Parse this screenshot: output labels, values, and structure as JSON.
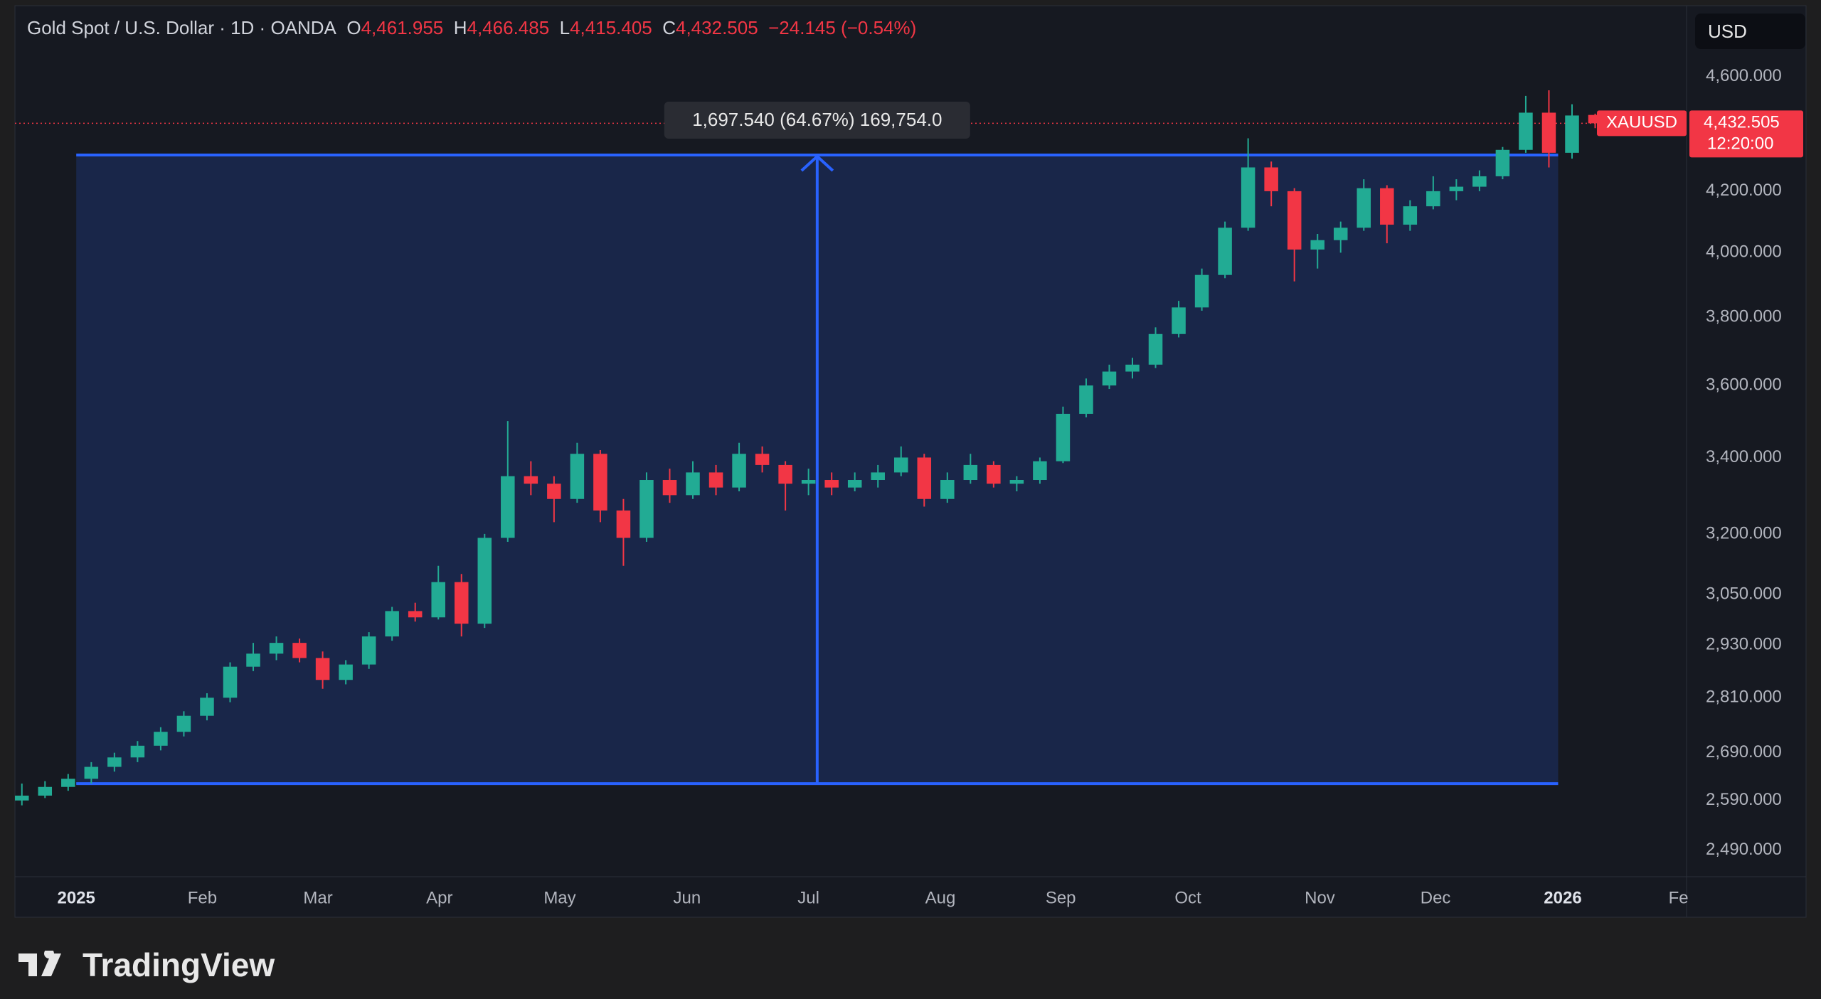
{
  "header": {
    "symbol": "Gold Spot / U.S. Dollar · 1D · OANDA",
    "o_label": "O",
    "o": "4,461.955",
    "h_label": "H",
    "h": "4,466.485",
    "l_label": "L",
    "l": "4,415.405",
    "c_label": "C",
    "c": "4,432.505",
    "change": "−24.145 (−0.54%)",
    "currency": "USD"
  },
  "chart_data": {
    "type": "candlestick",
    "ohlc": [
      [
        2590,
        2625,
        2580,
        2600
      ],
      [
        2600,
        2630,
        2595,
        2618
      ],
      [
        2618,
        2645,
        2610,
        2635
      ],
      [
        2635,
        2670,
        2625,
        2660
      ],
      [
        2660,
        2690,
        2650,
        2680
      ],
      [
        2680,
        2715,
        2670,
        2705
      ],
      [
        2705,
        2745,
        2695,
        2735
      ],
      [
        2735,
        2780,
        2725,
        2770
      ],
      [
        2770,
        2820,
        2760,
        2810
      ],
      [
        2810,
        2890,
        2800,
        2880
      ],
      [
        2880,
        2935,
        2870,
        2910
      ],
      [
        2910,
        2950,
        2895,
        2935
      ],
      [
        2935,
        2945,
        2890,
        2900
      ],
      [
        2900,
        2915,
        2830,
        2850
      ],
      [
        2850,
        2895,
        2840,
        2885
      ],
      [
        2885,
        2960,
        2875,
        2950
      ],
      [
        2950,
        3020,
        2940,
        3010
      ],
      [
        3010,
        3030,
        2985,
        2995
      ],
      [
        2995,
        3120,
        2990,
        3080
      ],
      [
        3080,
        3100,
        2950,
        2980
      ],
      [
        2980,
        3200,
        2970,
        3190
      ],
      [
        3190,
        3500,
        3180,
        3350
      ],
      [
        3350,
        3390,
        3300,
        3330
      ],
      [
        3330,
        3350,
        3230,
        3290
      ],
      [
        3290,
        3440,
        3280,
        3410
      ],
      [
        3410,
        3420,
        3230,
        3260
      ],
      [
        3260,
        3290,
        3120,
        3190
      ],
      [
        3190,
        3360,
        3180,
        3340
      ],
      [
        3340,
        3370,
        3280,
        3300
      ],
      [
        3300,
        3390,
        3290,
        3360
      ],
      [
        3360,
        3380,
        3300,
        3320
      ],
      [
        3320,
        3440,
        3310,
        3410
      ],
      [
        3410,
        3430,
        3360,
        3380
      ],
      [
        3380,
        3390,
        3260,
        3330
      ],
      [
        3330,
        3370,
        3300,
        3340
      ],
      [
        3340,
        3360,
        3300,
        3320
      ],
      [
        3320,
        3360,
        3310,
        3340
      ],
      [
        3340,
        3380,
        3320,
        3360
      ],
      [
        3360,
        3430,
        3350,
        3400
      ],
      [
        3400,
        3410,
        3270,
        3290
      ],
      [
        3290,
        3360,
        3280,
        3340
      ],
      [
        3340,
        3410,
        3330,
        3380
      ],
      [
        3380,
        3390,
        3320,
        3330
      ],
      [
        3330,
        3350,
        3310,
        3340
      ],
      [
        3340,
        3400,
        3330,
        3390
      ],
      [
        3390,
        3540,
        3385,
        3520
      ],
      [
        3520,
        3620,
        3510,
        3600
      ],
      [
        3600,
        3660,
        3590,
        3640
      ],
      [
        3640,
        3680,
        3620,
        3660
      ],
      [
        3660,
        3770,
        3650,
        3750
      ],
      [
        3750,
        3850,
        3740,
        3830
      ],
      [
        3830,
        3950,
        3820,
        3930
      ],
      [
        3930,
        4100,
        3920,
        4080
      ],
      [
        4080,
        4380,
        4070,
        4280
      ],
      [
        4280,
        4300,
        4150,
        4200
      ],
      [
        4200,
        4210,
        3910,
        4010
      ],
      [
        4010,
        4060,
        3950,
        4040
      ],
      [
        4040,
        4100,
        4000,
        4080
      ],
      [
        4080,
        4240,
        4070,
        4210
      ],
      [
        4210,
        4220,
        4030,
        4090
      ],
      [
        4090,
        4170,
        4070,
        4150
      ],
      [
        4150,
        4250,
        4140,
        4200
      ],
      [
        4200,
        4240,
        4170,
        4215
      ],
      [
        4215,
        4270,
        4200,
        4250
      ],
      [
        4250,
        4350,
        4240,
        4340
      ],
      [
        4340,
        4530,
        4330,
        4470
      ],
      [
        4470,
        4550,
        4280,
        4330
      ],
      [
        4330,
        4500,
        4310,
        4460
      ],
      [
        4461.955,
        4466.485,
        4415.405,
        4432.505
      ]
    ],
    "up_color": "#22ab94",
    "down_color": "#f23645",
    "xlim": [
      -0.3,
      71.95
    ],
    "xticks": [
      {
        "value": 2.35,
        "label": "2025"
      },
      {
        "value": 7.8,
        "label": "Feb"
      },
      {
        "value": 12.8,
        "label": "Mar"
      },
      {
        "value": 18.05,
        "label": "Apr"
      },
      {
        "value": 23.25,
        "label": "May"
      },
      {
        "value": 28.75,
        "label": "Jun"
      },
      {
        "value": 34,
        "label": "Jul"
      },
      {
        "value": 39.7,
        "label": "Aug"
      },
      {
        "value": 44.9,
        "label": "Sep"
      },
      {
        "value": 50.4,
        "label": "Oct"
      },
      {
        "value": 56.1,
        "label": "Nov"
      },
      {
        "value": 61.1,
        "label": "Dec"
      },
      {
        "value": 66.6,
        "label": "2026"
      },
      {
        "value": 71.6,
        "label": "Fe"
      }
    ],
    "ylim": [
      2438,
      4866
    ],
    "log_scale": true,
    "grid": true,
    "yticks": [
      {
        "value": 2490,
        "label": "2,490.000"
      },
      {
        "value": 2590,
        "label": "2,590.000"
      },
      {
        "value": 2690,
        "label": "2,690.000"
      },
      {
        "value": 2810,
        "label": "2,810.000"
      },
      {
        "value": 2930,
        "label": "2,930.000"
      },
      {
        "value": 3050,
        "label": "3,050.000"
      },
      {
        "value": 3200,
        "label": "3,200.000"
      },
      {
        "value": 3400,
        "label": "3,400.000"
      },
      {
        "value": 3600,
        "label": "3,600.000"
      },
      {
        "value": 3800,
        "label": "3,800.000"
      },
      {
        "value": 4000,
        "label": "4,000.000"
      },
      {
        "value": 4200,
        "label": "4,200.000"
      },
      {
        "value": 4600,
        "label": "4,600.000"
      }
    ],
    "last_price": {
      "symbol": "XAUUSD",
      "value": 4432.505,
      "label": "4,432.505",
      "countdown": "12:20:00",
      "color": "#f23645"
    },
    "measure": {
      "label": "1,697.540 (64.67%) 169,754.0",
      "start": 2.35,
      "end": 66.4,
      "from": 2624.9,
      "to": 4322.44,
      "color": "#2962ff"
    }
  },
  "footer": {
    "brand": "TradingView"
  }
}
